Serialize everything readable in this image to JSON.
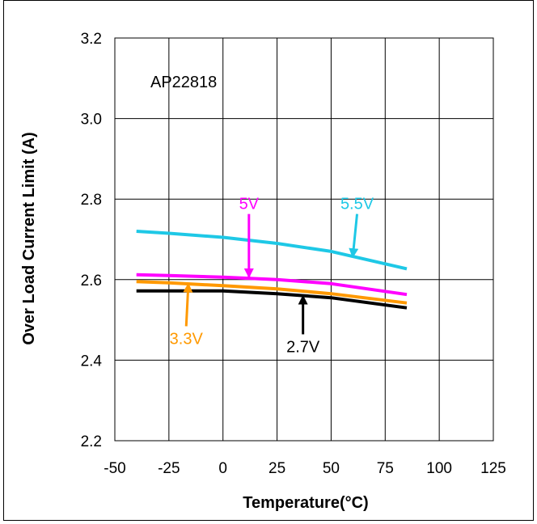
{
  "chart_data": {
    "type": "line",
    "title": "",
    "annotation_text": "AP22818",
    "xlabel": "Temperature(°C)",
    "ylabel": "Over Load Current Limit (A)",
    "xlim": [
      -50,
      125
    ],
    "ylim": [
      2.2,
      3.2
    ],
    "xticks": [
      "-50",
      "-25",
      "0",
      "25",
      "50",
      "75",
      "100",
      "125"
    ],
    "yticks": [
      "2.2",
      "2.4",
      "2.6",
      "2.8",
      "3.0",
      "3.2"
    ],
    "grid": true,
    "x": [
      -40,
      -25,
      0,
      25,
      50,
      85
    ],
    "series": [
      {
        "name": "5.5V",
        "color": "#1ec8e6",
        "values": [
          2.72,
          2.715,
          2.705,
          2.69,
          2.67,
          2.627
        ]
      },
      {
        "name": "5V",
        "color": "#ff00ff",
        "values": [
          2.612,
          2.61,
          2.606,
          2.6,
          2.59,
          2.563
        ]
      },
      {
        "name": "3.3V",
        "color": "#ff9900",
        "values": [
          2.595,
          2.592,
          2.585,
          2.577,
          2.565,
          2.542
        ]
      },
      {
        "name": "2.7V",
        "color": "#000000",
        "values": [
          2.572,
          2.572,
          2.572,
          2.565,
          2.555,
          2.53
        ]
      }
    ],
    "annotations": [
      {
        "text": "5V",
        "color": "#ff00ff",
        "label_x": 12,
        "label_y": 2.775,
        "arrow_to_x": 12,
        "arrow_to_y": 2.606
      },
      {
        "text": "5.5V",
        "color": "#1ec8e6",
        "label_x": 62,
        "label_y": 2.775,
        "arrow_to_x": 60,
        "arrow_to_y": 2.656
      },
      {
        "text": "3.3V",
        "color": "#ff9900",
        "label_x": -17,
        "label_y": 2.44,
        "arrow_to_x": -16,
        "arrow_to_y": 2.59
      },
      {
        "text": "2.7V",
        "color": "#000000",
        "label_x": 37,
        "label_y": 2.42,
        "arrow_to_x": 37,
        "arrow_to_y": 2.56
      }
    ]
  }
}
